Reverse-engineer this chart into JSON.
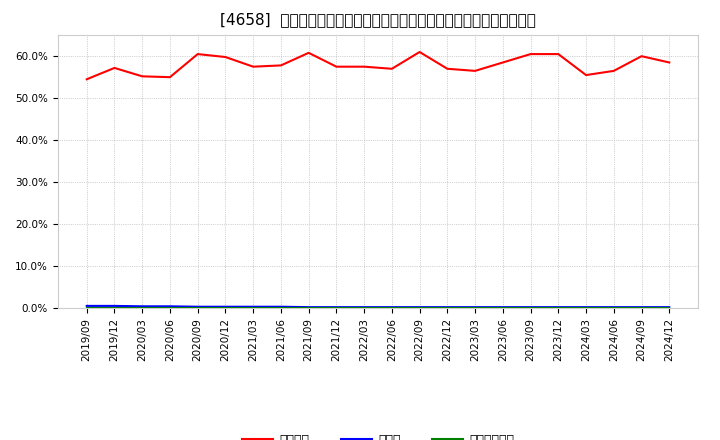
{
  "title": "[4658]  自己資本、のれん、繰延税金資産の総資産に対する比率の推移",
  "x_labels": [
    "2019/09",
    "2019/12",
    "2020/03",
    "2020/06",
    "2020/09",
    "2020/12",
    "2021/03",
    "2021/06",
    "2021/09",
    "2021/12",
    "2022/03",
    "2022/06",
    "2022/09",
    "2022/12",
    "2023/03",
    "2023/06",
    "2023/09",
    "2023/12",
    "2024/03",
    "2024/06",
    "2024/09",
    "2024/12"
  ],
  "equity_ratio": [
    54.5,
    57.2,
    55.2,
    55.0,
    60.5,
    59.8,
    57.5,
    57.8,
    60.8,
    57.5,
    57.5,
    57.0,
    61.0,
    57.0,
    56.5,
    58.5,
    60.5,
    60.5,
    55.5,
    56.5,
    60.0,
    58.5
  ],
  "noren_ratio": [
    0.5,
    0.5,
    0.4,
    0.4,
    0.3,
    0.3,
    0.3,
    0.3,
    0.2,
    0.2,
    0.2,
    0.2,
    0.2,
    0.2,
    0.2,
    0.2,
    0.2,
    0.2,
    0.2,
    0.2,
    0.2,
    0.2
  ],
  "deferred_tax_ratio": [
    0.0,
    0.0,
    0.0,
    0.0,
    0.0,
    0.0,
    0.0,
    0.0,
    0.0,
    0.0,
    0.0,
    0.0,
    0.0,
    0.0,
    0.0,
    0.0,
    0.0,
    0.0,
    0.0,
    0.0,
    0.0,
    0.0
  ],
  "line_colors": {
    "equity": "#ff0000",
    "noren": "#0000ff",
    "deferred": "#008000"
  },
  "legend_labels": [
    "自己資本",
    "のれん",
    "繰延税金資産"
  ],
  "ylim": [
    0.0,
    65.0
  ],
  "yticks": [
    0.0,
    10.0,
    20.0,
    30.0,
    40.0,
    50.0,
    60.0
  ],
  "background_color": "#ffffff",
  "plot_bg_color": "#ffffff",
  "grid_color": "#aaaaaa",
  "title_fontsize": 11,
  "tick_fontsize": 7.5
}
